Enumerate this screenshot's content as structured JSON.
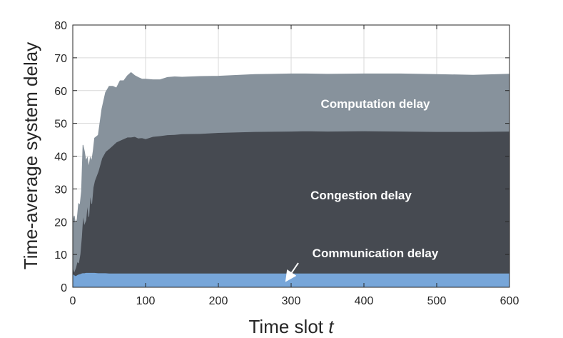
{
  "chart_data": {
    "type": "area",
    "stacked": true,
    "xlabel_main": "Time slot ",
    "xlabel_var": "t",
    "ylabel": "Time-average system delay",
    "xlim": [
      0,
      600
    ],
    "ylim": [
      0,
      80
    ],
    "x_ticks": [
      "0",
      "100",
      "200",
      "300",
      "400",
      "500",
      "600"
    ],
    "y_ticks": [
      "0",
      "10",
      "20",
      "30",
      "40",
      "50",
      "60",
      "70",
      "80"
    ],
    "grid": true,
    "x": [
      0,
      2,
      4,
      6,
      8,
      10,
      12,
      14,
      16,
      18,
      20,
      22,
      24,
      26,
      28,
      30,
      35,
      40,
      45,
      50,
      55,
      60,
      65,
      70,
      75,
      80,
      85,
      90,
      95,
      100,
      110,
      120,
      130,
      140,
      150,
      175,
      200,
      250,
      300,
      320,
      350,
      400,
      450,
      500,
      550,
      600
    ],
    "series": [
      {
        "name": "Communication delay",
        "color": "#77a6d9",
        "values": [
          4.2,
          3.8,
          3.5,
          3.8,
          4.0,
          4.1,
          4.3,
          4.4,
          4.4,
          4.5,
          4.5,
          4.5,
          4.5,
          4.5,
          4.5,
          4.5,
          4.4,
          4.4,
          4.4,
          4.3,
          4.3,
          4.3,
          4.3,
          4.3,
          4.3,
          4.3,
          4.3,
          4.3,
          4.3,
          4.3,
          4.3,
          4.3,
          4.3,
          4.3,
          4.3,
          4.3,
          4.3,
          4.3,
          4.3,
          4.3,
          4.3,
          4.3,
          4.3,
          4.3,
          4.3,
          4.3
        ]
      },
      {
        "name": "Congestion delay",
        "color": "#464a51",
        "values": [
          2.0,
          1.0,
          2.5,
          4.0,
          3.5,
          6.0,
          11.0,
          18.0,
          15.0,
          16.0,
          21.0,
          17.0,
          24.0,
          21.0,
          26.0,
          28.0,
          31.0,
          35.0,
          37.0,
          38.0,
          39.0,
          40.0,
          40.5,
          41.0,
          41.5,
          41.5,
          41.7,
          41.2,
          41.3,
          41.0,
          41.7,
          41.9,
          42.2,
          42.3,
          42.5,
          42.6,
          42.9,
          43.2,
          43.3,
          43.4,
          43.3,
          43.4,
          43.3,
          43.2,
          43.2,
          43.3
        ]
      },
      {
        "name": "Computation delay",
        "color": "#87929c",
        "values": [
          14.0,
          17.0,
          13.0,
          13.0,
          18.0,
          15.0,
          14.0,
          21.0,
          22.0,
          18.0,
          14.0,
          15.0,
          11.0,
          13.0,
          11.0,
          13.0,
          11.0,
          15.0,
          18.0,
          19.0,
          18.0,
          16.5,
          18.2,
          17.7,
          18.7,
          19.7,
          18.6,
          18.5,
          17.9,
          18.2,
          17.3,
          17.1,
          17.5,
          17.6,
          17.3,
          17.4,
          17.2,
          17.4,
          17.5,
          17.4,
          17.4,
          17.4,
          17.5,
          17.4,
          17.2,
          17.4
        ]
      }
    ],
    "annotations": {
      "computation_label": "Computation delay",
      "congestion_label": "Congestion delay",
      "communication_label": "Communication delay"
    }
  }
}
